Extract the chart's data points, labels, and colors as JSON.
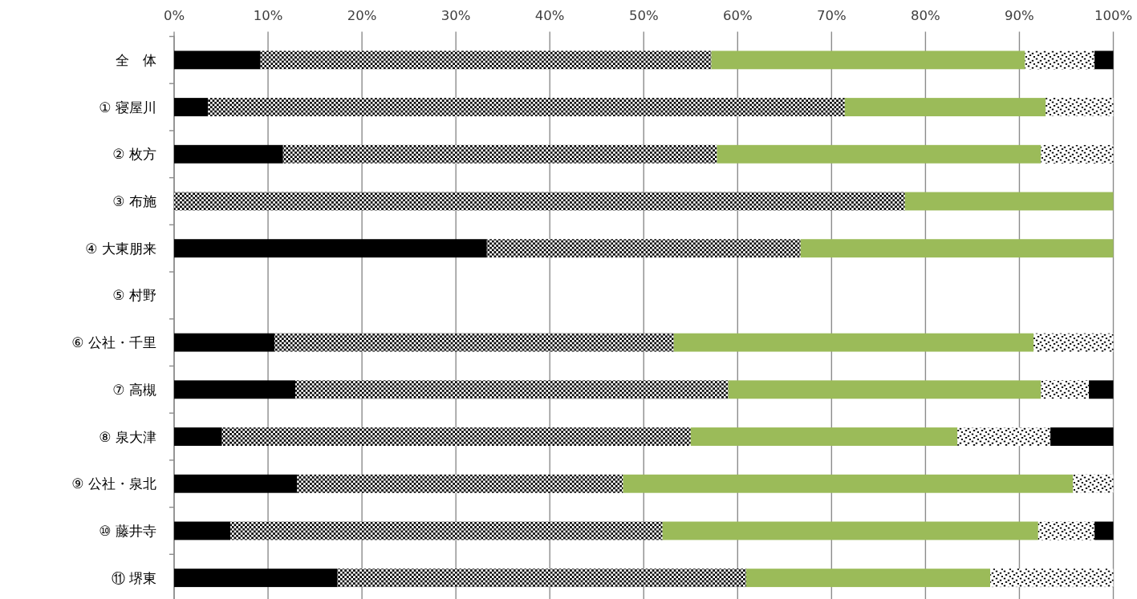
{
  "chart_data": {
    "type": "bar",
    "orientation": "horizontal",
    "stacked": true,
    "categories": [
      "全　体",
      "① 寝屋川",
      "② 枚方",
      "③ 布施",
      "④ 大東朋来",
      "⑤ 村野",
      "⑥ 公社・千里",
      "⑦ 高槻",
      "⑧ 泉大津",
      "⑨ 公社・泉北",
      "⑩ 藤井寺",
      "⑪ 堺東"
    ],
    "series": [
      {
        "color": "#000000",
        "values": [
          9.2,
          3.6,
          11.6,
          0,
          33.3,
          0,
          10.7,
          12.9,
          5.1,
          13.1,
          6.0,
          17.4
        ]
      },
      {
        "color": "#000000",
        "values": [
          48.0,
          67.8,
          46.2,
          77.8,
          33.4,
          0,
          42.5,
          46.1,
          49.9,
          34.7,
          46.0,
          43.5
        ]
      },
      {
        "color": "#9bbb59",
        "values": [
          33.4,
          21.4,
          34.5,
          22.2,
          33.3,
          0,
          38.3,
          33.3,
          28.4,
          47.9,
          40.0,
          26.0
        ]
      },
      {
        "color": "#000000",
        "values": [
          7.4,
          7.2,
          7.7,
          0,
          0,
          0,
          8.5,
          5.1,
          9.9,
          4.3,
          6.0,
          13.1
        ]
      },
      {
        "color": "#000000",
        "values": [
          2.0,
          0,
          0,
          0,
          0,
          0,
          0,
          2.6,
          6.7,
          0,
          2.0,
          0
        ]
      }
    ],
    "xlim": [
      0,
      100
    ],
    "xticks": [
      {
        "value": 0,
        "label": "0%"
      },
      {
        "value": 10,
        "label": "10%"
      },
      {
        "value": 20,
        "label": "20%"
      },
      {
        "value": 30,
        "label": "30%"
      },
      {
        "value": 40,
        "label": "40%"
      },
      {
        "value": 50,
        "label": "50%"
      },
      {
        "value": 60,
        "label": "60%"
      },
      {
        "value": 70,
        "label": "70%"
      },
      {
        "value": 80,
        "label": "80%"
      },
      {
        "value": 90,
        "label": "90%"
      },
      {
        "value": 100,
        "label": "100%"
      }
    ],
    "grid": "x"
  }
}
